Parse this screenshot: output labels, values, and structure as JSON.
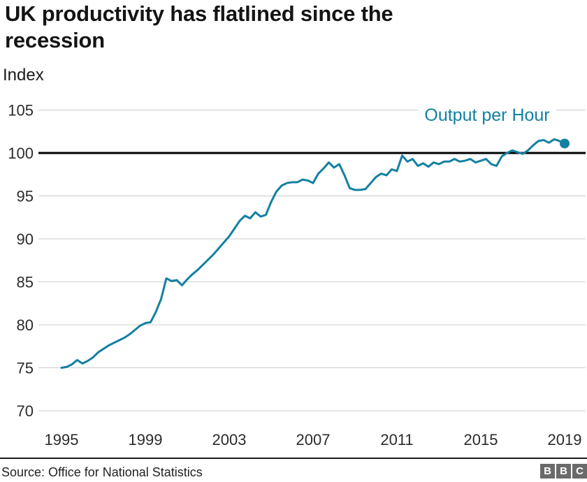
{
  "header": {
    "title": "UK productivity has flatlined since the recession",
    "unit_label": "Index"
  },
  "chart_data": {
    "type": "line",
    "title": "UK productivity has flatlined since the recession",
    "ylabel": "Index",
    "xlabel": "",
    "grid": "horizontal",
    "legend_position": "top-right-inline",
    "ylim": [
      70,
      105
    ],
    "yticks": [
      105,
      100,
      95,
      90,
      85,
      80,
      75,
      70
    ],
    "xticks": [
      1995,
      1999,
      2003,
      2007,
      2011,
      2015,
      2019
    ],
    "baseline_value": 100,
    "x_start_year": 1995,
    "frequency": "quarterly",
    "end_dot": true,
    "series": [
      {
        "name": "Output per Hour",
        "values": [
          75.0,
          75.1,
          75.4,
          75.9,
          75.5,
          75.8,
          76.2,
          76.8,
          77.2,
          77.6,
          77.9,
          78.2,
          78.5,
          78.9,
          79.4,
          79.9,
          80.2,
          80.3,
          81.5,
          83.0,
          85.4,
          85.1,
          85.2,
          84.6,
          85.3,
          85.9,
          86.4,
          87.0,
          87.6,
          88.2,
          88.9,
          89.6,
          90.3,
          91.2,
          92.1,
          92.7,
          92.4,
          93.1,
          92.6,
          92.8,
          94.3,
          95.5,
          96.2,
          96.5,
          96.6,
          96.6,
          96.9,
          96.8,
          96.5,
          97.6,
          98.2,
          98.9,
          98.3,
          98.7,
          97.4,
          95.9,
          95.7,
          95.7,
          95.8,
          96.5,
          97.2,
          97.6,
          97.4,
          98.1,
          97.9,
          99.7,
          99.0,
          99.3,
          98.5,
          98.8,
          98.4,
          98.9,
          98.7,
          99.0,
          99.0,
          99.3,
          99.0,
          99.1,
          99.3,
          98.9,
          99.1,
          99.3,
          98.7,
          98.5,
          99.6,
          100.0,
          100.3,
          100.1,
          99.9,
          100.3,
          100.9,
          101.4,
          101.5,
          101.2,
          101.6,
          101.4,
          101.1
        ]
      }
    ]
  },
  "colors": {
    "line": "#1380A1",
    "baseline": "#000000",
    "grid": "#cccccc",
    "tick_text": "#2b2b2b",
    "title_text": "#141414"
  },
  "footer": {
    "source": "Source: Office for National Statistics",
    "logo_blocks": [
      "B",
      "B",
      "C"
    ]
  }
}
